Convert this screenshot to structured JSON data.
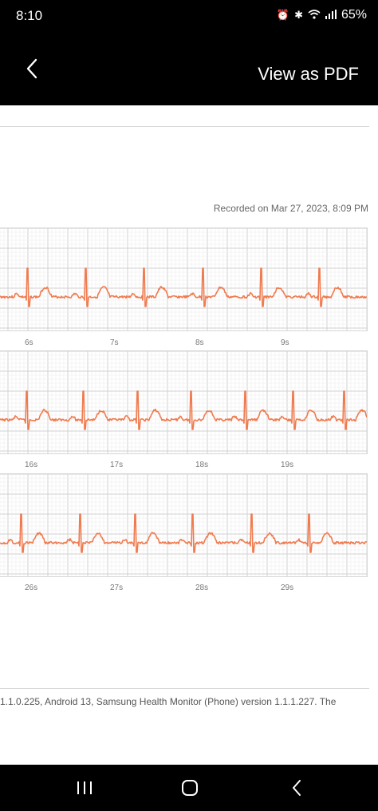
{
  "status_bar": {
    "time": "8:10",
    "battery": "65%",
    "icons": [
      "alarm-icon",
      "bluetooth-icon",
      "wifi-icon",
      "signal-icon"
    ]
  },
  "app_bar": {
    "title": "View as PDF",
    "back_icon": "chevron-left-icon"
  },
  "recorded": "Recorded on Mar 27, 2023, 8:09 PM",
  "strips": [
    {
      "labels": [
        "6s",
        "7s",
        "8s",
        "9s"
      ]
    },
    {
      "labels": [
        "16s",
        "17s",
        "18s",
        "19s"
      ]
    },
    {
      "labels": [
        "26s",
        "27s",
        "28s",
        "29s"
      ]
    }
  ],
  "footer": "1.1.0.225, Android 13, Samsung Health Monitor (Phone) version 1.1.1.227. The",
  "nav": {
    "recents_icon": "recents-icon",
    "home_icon": "home-icon",
    "back_icon": "back-icon"
  },
  "colors": {
    "ecg": "#f07b4f",
    "grid_major": "#d2d2d2",
    "grid_minor": "#ececec",
    "chrome": "#000000"
  }
}
